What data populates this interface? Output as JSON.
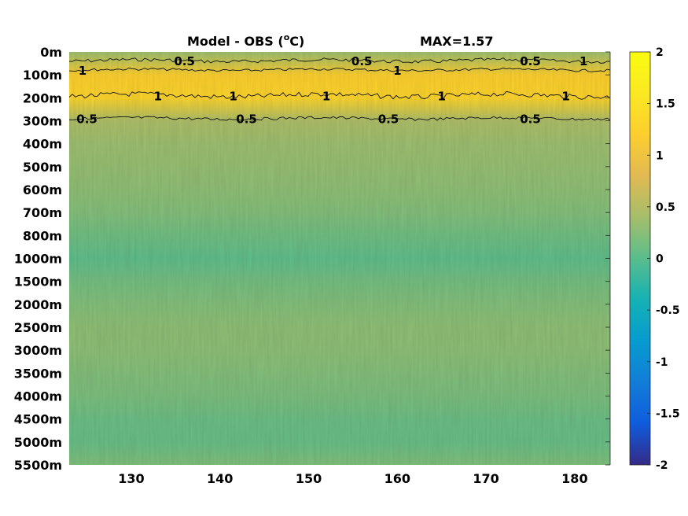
{
  "chart_data": {
    "type": "heatmap",
    "title": "Model - OBS (",
    "title_sup": "o",
    "title_unit": "C)",
    "max_label": "MAX=1.57",
    "depth_labels": [
      "0m",
      "100m",
      "200m",
      "300m",
      "400m",
      "500m",
      "600m",
      "700m",
      "800m",
      "1000m",
      "1500m",
      "2000m",
      "2500m",
      "3000m",
      "3500m",
      "4000m",
      "4500m",
      "5000m",
      "5500m"
    ],
    "x_ticks": [
      130,
      140,
      150,
      160,
      170,
      180
    ],
    "x_tick_labels": [
      "130",
      "140",
      "150",
      "160",
      "170",
      "180"
    ],
    "xlim": [
      123,
      184
    ],
    "colorbar": {
      "range": [
        -2,
        2
      ],
      "ticks": [
        2,
        1.5,
        1,
        0.5,
        0,
        -0.5,
        -1,
        -1.5,
        -2
      ],
      "tick_labels": [
        "2",
        "1.5",
        "1",
        "0.5",
        "0",
        "-0.5",
        "-1",
        "-1.5",
        "-2"
      ],
      "colormap": "parula"
    },
    "depth_profile": [
      0.35,
      1.2,
      1.3,
      0.45,
      0.35,
      0.32,
      0.28,
      0.22,
      0.12,
      0.03,
      0.14,
      0.22,
      0.28,
      0.27,
      0.22,
      0.18,
      0.1,
      0.08,
      0.2
    ],
    "contour_labels": {
      "upper": [
        {
          "x": 136,
          "text": "0.5"
        },
        {
          "x": 156,
          "text": "0.5"
        },
        {
          "x": 175,
          "text": "0.5"
        },
        {
          "x": 181,
          "text": "1"
        }
      ],
      "core_top": [
        {
          "x": 124.5,
          "text": "1"
        },
        {
          "x": 160,
          "text": "1"
        }
      ],
      "core_bottom": [
        {
          "x": 133,
          "text": "1"
        },
        {
          "x": 141.5,
          "text": "1"
        },
        {
          "x": 152,
          "text": "1"
        },
        {
          "x": 165,
          "text": "1"
        },
        {
          "x": 179,
          "text": "1"
        }
      ],
      "lower": [
        {
          "x": 125,
          "text": "0.5"
        },
        {
          "x": 143,
          "text": "0.5"
        },
        {
          "x": 159,
          "text": "0.5"
        },
        {
          "x": 175,
          "text": "0.5"
        }
      ]
    }
  }
}
